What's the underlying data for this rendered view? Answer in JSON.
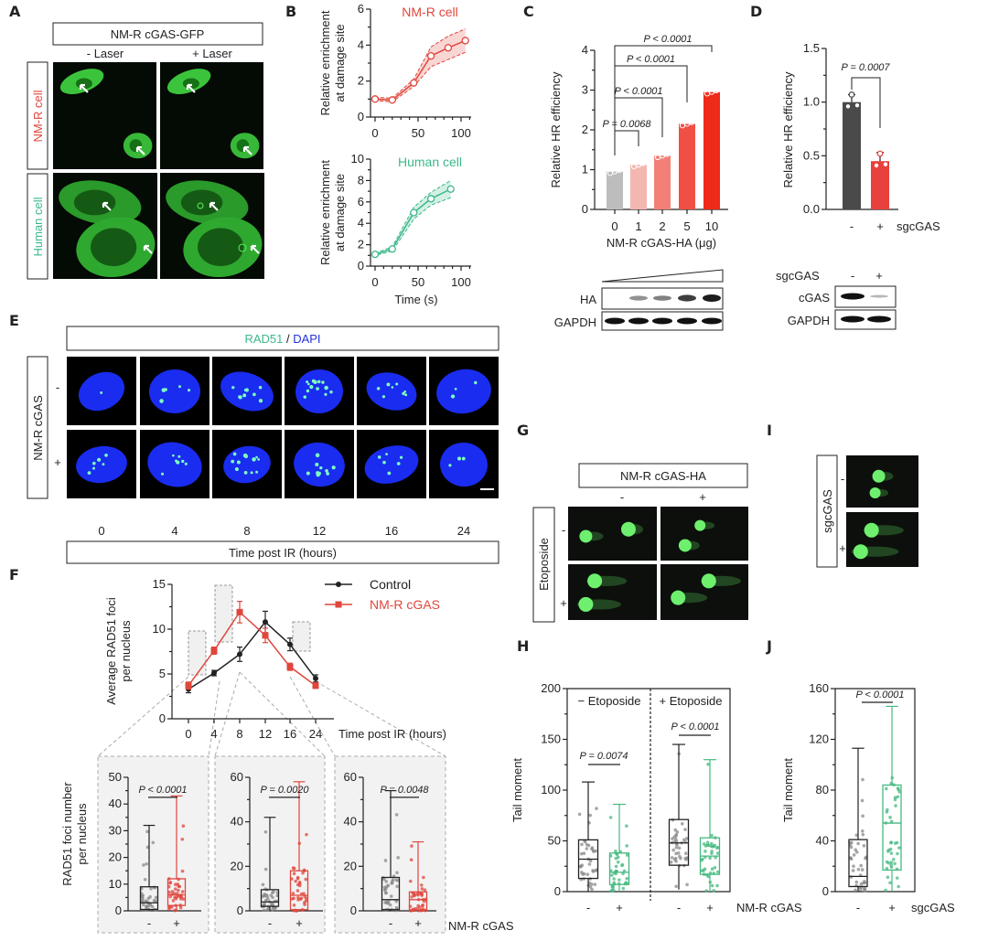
{
  "panels": {
    "A": {
      "label": "A",
      "header": "NM-R cGAS-GFP",
      "cols": [
        "- Laser",
        "+ Laser"
      ],
      "rows": [
        "NM-R cell",
        "Human cell"
      ]
    },
    "B": {
      "label": "B"
    },
    "C": {
      "label": "C",
      "blot_rows": [
        "HA",
        "GAPDH"
      ]
    },
    "D": {
      "label": "D",
      "blot_header": "sgcGAS",
      "blot_cols": [
        "-",
        "+"
      ],
      "blot_rows": [
        "cGAS",
        "GAPDH"
      ]
    },
    "E": {
      "label": "E",
      "header": "RAD51 / DAPI",
      "stain_a": "RAD51",
      "stain_sep": " / ",
      "stain_b": "DAPI",
      "side": "NM-R cGAS",
      "rows": [
        "-",
        "+"
      ],
      "times": [
        "0",
        "4",
        "8",
        "12",
        "16",
        "24"
      ],
      "footer": "Time post IR (hours)"
    },
    "F": {
      "label": "F"
    },
    "G": {
      "label": "G",
      "header": "NM-R cGAS-HA",
      "cols": [
        "-",
        "+"
      ],
      "side": "Etoposide",
      "rows": [
        "-",
        "+"
      ]
    },
    "H": {
      "label": "H"
    },
    "I": {
      "label": "I",
      "side": "sgcGAS",
      "rows": [
        "-",
        "+"
      ]
    },
    "J": {
      "label": "J"
    }
  },
  "colors": {
    "nmr": "#e0463c",
    "human": "#3cb98a",
    "control": "#222222",
    "gray": "#8a8a8a",
    "green": "#45b980"
  },
  "chart_data": [
    {
      "type": "line",
      "panel": "B",
      "title": "NM-R cell",
      "ylabel": [
        "Relative enrichment",
        "at damage site"
      ],
      "xlabel": "",
      "ylim": [
        0,
        6
      ],
      "xlim": [
        0,
        100
      ],
      "yticks": [
        "0",
        "2",
        "4",
        "6"
      ],
      "xticks": [
        "0",
        "50",
        "100"
      ],
      "x": [
        0,
        20,
        45,
        65,
        85,
        105
      ],
      "y": [
        1.0,
        0.95,
        1.9,
        3.4,
        3.85,
        4.25
      ],
      "lower": [
        0.9,
        0.85,
        1.7,
        2.8,
        3.2,
        3.6
      ],
      "upper": [
        1.1,
        1.05,
        2.1,
        3.9,
        4.5,
        4.9
      ]
    },
    {
      "type": "line",
      "panel": "B",
      "title": "Human cell",
      "ylabel": [
        "Relative enrichment",
        "at damage site"
      ],
      "xlabel": "Time (s)",
      "ylim": [
        0,
        10
      ],
      "xlim": [
        0,
        100
      ],
      "yticks": [
        "0",
        "2",
        "4",
        "6",
        "8",
        "10"
      ],
      "xticks": [
        "0",
        "50",
        "100"
      ],
      "x": [
        0,
        20,
        45,
        65,
        88
      ],
      "y": [
        1.1,
        1.6,
        5.0,
        6.3,
        7.2
      ],
      "lower": [
        1.0,
        1.4,
        4.4,
        5.7,
        6.4
      ],
      "upper": [
        1.2,
        1.8,
        5.5,
        6.9,
        8.0
      ]
    },
    {
      "type": "bar",
      "panel": "C",
      "ylabel": "Relative HR efficiency",
      "xlabel": "NM-R cGAS-HA (μg)",
      "ylim": [
        0,
        4
      ],
      "yticks": [
        "0",
        "1",
        "2",
        "3",
        "4"
      ],
      "categories": [
        "0",
        "1",
        "2",
        "5",
        "10"
      ],
      "values": [
        0.95,
        1.12,
        1.35,
        2.15,
        2.95
      ],
      "bar_colors": [
        "#bdbdbd",
        "#f4b6b0",
        "#f28077",
        "#f04f44",
        "#ee2a1a"
      ],
      "comparisons": [
        {
          "from": "0",
          "to": "1",
          "p": "P = 0.0068"
        },
        {
          "from": "0",
          "to": "2",
          "p": "P < 0.0001"
        },
        {
          "from": "0",
          "to": "5",
          "p": "P < 0.0001"
        },
        {
          "from": "0",
          "to": "10",
          "p": "P < 0.0001"
        }
      ]
    },
    {
      "type": "bar",
      "panel": "D",
      "ylabel": "Relative HR efficiency",
      "xlabel": "sgcGAS",
      "ylim": [
        0,
        1.5
      ],
      "yticks": [
        "0.0",
        "0.5",
        "1.0",
        "1.5"
      ],
      "categories": [
        "-",
        "+"
      ],
      "values": [
        1.0,
        0.45
      ],
      "errors": [
        0.07,
        0.08
      ],
      "bar_colors": [
        "#4a4a4a",
        "#e8403a"
      ],
      "comparisons": [
        {
          "from": "-",
          "to": "+",
          "p": "P = 0.0007"
        }
      ]
    },
    {
      "type": "line",
      "panel": "F",
      "ylabel": [
        "Average RAD51 foci",
        "per nucleus"
      ],
      "xlabel": "Time post IR (hours)",
      "ylim": [
        0,
        15
      ],
      "yticks": [
        "0",
        "5",
        "10",
        "15"
      ],
      "categories": [
        "0",
        "4",
        "8",
        "12",
        "16",
        "24"
      ],
      "series": [
        {
          "name": "Control",
          "values": [
            3.3,
            5.1,
            7.2,
            10.8,
            8.3,
            4.5
          ],
          "errors": [
            0.4,
            0.3,
            0.8,
            1.2,
            0.7,
            0.4
          ]
        },
        {
          "name": "NM-R cGAS",
          "values": [
            3.7,
            7.6,
            11.9,
            9.3,
            5.8,
            3.7
          ],
          "errors": [
            0.4,
            0.4,
            1.2,
            0.8,
            0.4,
            0.3
          ]
        }
      ]
    },
    {
      "type": "box",
      "panel": "F",
      "time": "4",
      "ylabel": [
        "RAD51 foci number",
        "per nucleus"
      ],
      "ylim": [
        0,
        50
      ],
      "yticks": [
        "0",
        "10",
        "20",
        "30",
        "40",
        "50"
      ],
      "p": "P < 0.0001",
      "groups": [
        {
          "label": "-",
          "min": 0,
          "q1": 0.5,
          "median": 3,
          "q3": 9,
          "max": 32
        },
        {
          "label": "+",
          "min": 0,
          "q1": 2,
          "median": 6,
          "q3": 12,
          "max": 43
        }
      ]
    },
    {
      "type": "box",
      "panel": "F",
      "time": "8",
      "ylim": [
        0,
        60
      ],
      "yticks": [
        "0",
        "20",
        "40",
        "60"
      ],
      "p": "P = 0.0020",
      "groups": [
        {
          "label": "-",
          "min": 0,
          "q1": 2,
          "median": 4,
          "q3": 9.5,
          "max": 42
        },
        {
          "label": "+",
          "min": 0,
          "q1": 0.5,
          "median": 7,
          "q3": 18,
          "max": 58
        }
      ]
    },
    {
      "type": "box",
      "panel": "F",
      "time": "16",
      "ylim": [
        0,
        60
      ],
      "yticks": [
        "0",
        "20",
        "40",
        "60"
      ],
      "p": "P = 0.0048",
      "xlabel": "NM-R cGAS",
      "groups": [
        {
          "label": "-",
          "min": 0,
          "q1": 0.5,
          "median": 5,
          "q3": 15,
          "max": 54
        },
        {
          "label": "+",
          "min": 0,
          "q1": 0.3,
          "median": 5,
          "q3": 8.5,
          "max": 31
        }
      ]
    },
    {
      "type": "box",
      "panel": "H",
      "ylabel": "Tail moment",
      "xlabel": "NM-R cGAS",
      "ylim": [
        0,
        200
      ],
      "yticks": [
        "0",
        "50",
        "100",
        "150",
        "200"
      ],
      "sections": [
        "− Etoposide",
        "+ Etoposide"
      ],
      "p_values": [
        "P = 0.0074",
        "P < 0.0001"
      ],
      "groups": [
        {
          "label": "-",
          "min": 0,
          "q1": 13,
          "median": 32,
          "q3": 51,
          "max": 108
        },
        {
          "label": "+",
          "min": 0,
          "q1": 7,
          "median": 19,
          "q3": 38,
          "max": 86
        },
        {
          "label": "-",
          "min": 2,
          "q1": 26,
          "median": 48,
          "q3": 71,
          "max": 145
        },
        {
          "label": "+",
          "min": 0,
          "q1": 17,
          "median": 35,
          "q3": 53,
          "max": 130
        }
      ]
    },
    {
      "type": "box",
      "panel": "J",
      "ylabel": "Tail moment",
      "xlabel": "sgcGAS",
      "ylim": [
        0,
        160
      ],
      "yticks": [
        "0",
        "40",
        "80",
        "120",
        "160"
      ],
      "p": "P < 0.0001",
      "groups": [
        {
          "label": "-",
          "min": 0,
          "q1": 4,
          "median": 12,
          "q3": 41,
          "max": 113
        },
        {
          "label": "+",
          "min": 0,
          "q1": 17,
          "median": 54,
          "q3": 84,
          "max": 146
        }
      ]
    }
  ]
}
